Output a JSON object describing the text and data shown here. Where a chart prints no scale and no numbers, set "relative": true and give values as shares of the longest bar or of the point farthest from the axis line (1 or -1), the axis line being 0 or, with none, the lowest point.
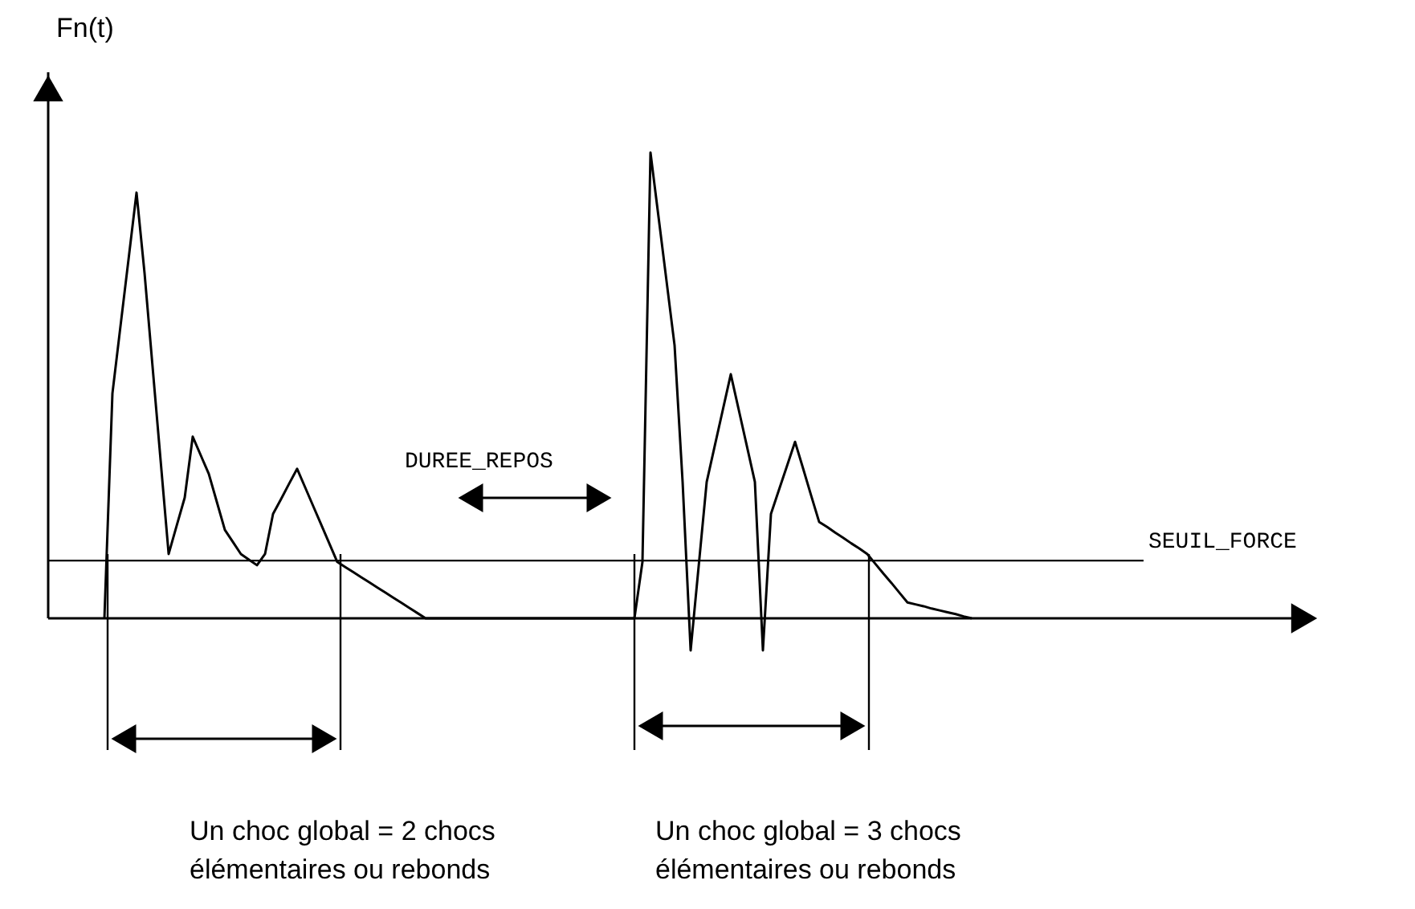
{
  "chart_data": {
    "type": "line",
    "relative": true,
    "ylabel": "Fn(t)",
    "marker": "none",
    "line_style": "solid",
    "categories": [
      null,
      null,
      null,
      null,
      null,
      null,
      null,
      null,
      null,
      null,
      null,
      null,
      null,
      null,
      null,
      null,
      null,
      null,
      null,
      null,
      null,
      null,
      null,
      null,
      null,
      null,
      null,
      null,
      null,
      null,
      null,
      null,
      null,
      null,
      null,
      null,
      null,
      null,
      null,
      null,
      null,
      null,
      null,
      null,
      null,
      null,
      null,
      null,
      null,
      null,
      null,
      null,
      null,
      null,
      null,
      null,
      null,
      null,
      null,
      null,
      null,
      null,
      null,
      null,
      null,
      null,
      null,
      null,
      null,
      null,
      null,
      null,
      null,
      null,
      null,
      null,
      null,
      null,
      null,
      null,
      null,
      null,
      null,
      null,
      null,
      null,
      null,
      null,
      null,
      null,
      null,
      null,
      null,
      null,
      null,
      null,
      null,
      null,
      null,
      null,
      null,
      null,
      null,
      null,
      null,
      null,
      null,
      null,
      null
    ],
    "series": [
      {
        "color": "#000000",
        "values": [
          0,
          0.483,
          0.627,
          0.77,
          0.914,
          0.741,
          0.54,
          0.339,
          0.138,
          0.199,
          0.259,
          0.39,
          0.35,
          0.31,
          0.25,
          0.19,
          0.164,
          0.138,
          0.126,
          0.114,
          0.138,
          0.224,
          0.256,
          0.289,
          0.321,
          0.281,
          0.241,
          0.201,
          0.161,
          0.121,
          0.11,
          0.099,
          0.088,
          0.077,
          0.066,
          0.055,
          0.044,
          0.033,
          0.022,
          0.011,
          0,
          0,
          0,
          0,
          0,
          0,
          0,
          0,
          0,
          0,
          0,
          0,
          0,
          0,
          0,
          0,
          0,
          0,
          0,
          0,
          0,
          0,
          0,
          0,
          0,
          0,
          0,
          0.121,
          1.0,
          0.862,
          0.724,
          0.586,
          0.293,
          -0.069,
          0.112,
          0.293,
          0.37,
          0.447,
          0.524,
          0.447,
          0.37,
          0.293,
          -0.069,
          0.224,
          0.276,
          0.327,
          0.379,
          0.322,
          0.264,
          0.207,
          0.196,
          0.184,
          0.173,
          0.161,
          0.15,
          0.138,
          0.117,
          0.096,
          0.076,
          0.055,
          0.034,
          0.03,
          0.026,
          0.021,
          0.017,
          0.013,
          0.009,
          0.004,
          0
        ]
      }
    ],
    "ref_lines": [
      {
        "axis": "y",
        "value": 0.124,
        "label": "SEUIL_FORCE",
        "color": "#000000"
      }
    ],
    "annotations": [
      "DUREE_REPOS",
      "Un choc global = 2 chocs\nélémentaires ou rebonds",
      "Un choc global = 3 chocs\nélémentaires ou rebonds"
    ]
  }
}
